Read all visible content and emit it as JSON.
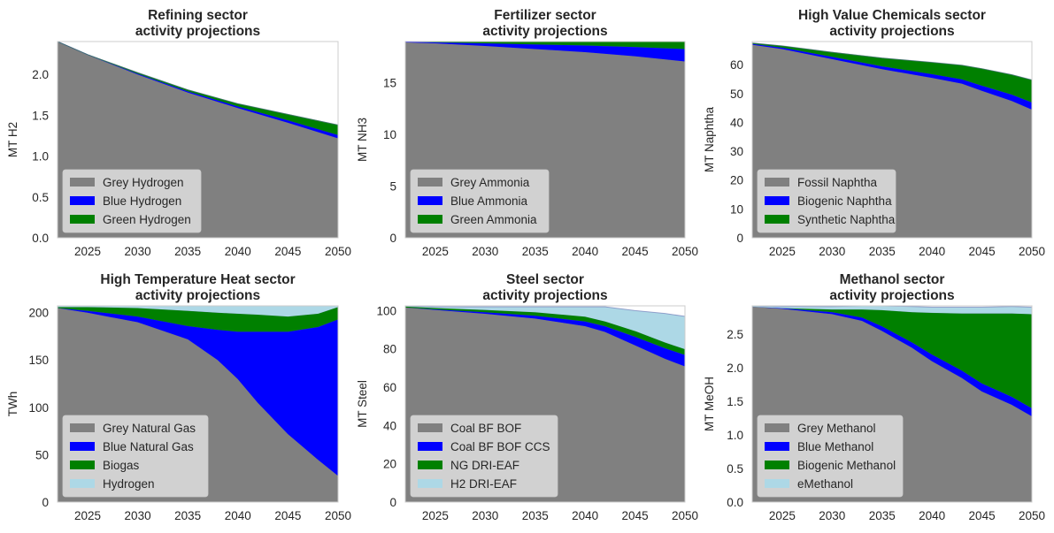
{
  "colors": {
    "grey": "#808080",
    "blue": "#0000ff",
    "green": "#008000",
    "lightblue": "#add8e6",
    "plot_bg": "#ffffff",
    "frame": "#cccccc",
    "legend_bg": "#e5e5e5"
  },
  "chart_data": [
    {
      "type": "area",
      "stacked": true,
      "title": "Refining sector\nactivity projections",
      "ylabel": "MT H2",
      "xlim": [
        2022,
        2050
      ],
      "ylim": [
        0,
        2.4
      ],
      "xticks": [
        2025,
        2030,
        2035,
        2040,
        2045,
        2050
      ],
      "yticks": [
        0.0,
        0.5,
        1.0,
        1.5,
        2.0
      ],
      "ytick_labels": [
        "0.0",
        "0.5",
        "1.0",
        "1.5",
        "2.0"
      ],
      "legend_loc": "lower-left",
      "grid": false,
      "x": [
        2022,
        2025,
        2030,
        2035,
        2040,
        2045,
        2050
      ],
      "series": [
        {
          "name": "Grey Hydrogen",
          "color": "grey",
          "values": [
            2.4,
            2.24,
            2.0,
            1.78,
            1.59,
            1.41,
            1.22
          ]
        },
        {
          "name": "Blue Hydrogen",
          "color": "blue",
          "values": [
            0.0,
            0.0,
            0.01,
            0.015,
            0.02,
            0.03,
            0.04
          ]
        },
        {
          "name": "Green Hydrogen",
          "color": "green",
          "values": [
            0.0,
            0.0,
            0.01,
            0.015,
            0.03,
            0.07,
            0.12
          ]
        }
      ]
    },
    {
      "type": "area",
      "stacked": true,
      "title": "Fertilizer sector\nactivity projections",
      "ylabel": "MT NH3",
      "xlim": [
        2022,
        2050
      ],
      "ylim": [
        0,
        19
      ],
      "xticks": [
        2025,
        2030,
        2035,
        2040,
        2045,
        2050
      ],
      "yticks": [
        0,
        5,
        10,
        15
      ],
      "ytick_labels": [
        "0",
        "5",
        "10",
        "15"
      ],
      "legend_loc": "lower-left",
      "grid": false,
      "x": [
        2022,
        2025,
        2030,
        2035,
        2040,
        2045,
        2050
      ],
      "series": [
        {
          "name": "Grey Ammonia",
          "color": "grey",
          "values": [
            18.95,
            18.85,
            18.6,
            18.3,
            18.0,
            17.6,
            17.1
          ]
        },
        {
          "name": "Blue Ammonia",
          "color": "blue",
          "values": [
            0.05,
            0.1,
            0.25,
            0.45,
            0.65,
            0.9,
            1.2
          ]
        },
        {
          "name": "Green Ammonia",
          "color": "green",
          "values": [
            0.0,
            0.05,
            0.15,
            0.25,
            0.35,
            0.5,
            0.7
          ]
        }
      ]
    },
    {
      "type": "area",
      "stacked": true,
      "title": "High Value Chemicals sector\nactivity projections",
      "ylabel": "MT Naphtha",
      "xlim": [
        2022,
        2050
      ],
      "ylim": [
        0,
        68
      ],
      "xticks": [
        2025,
        2030,
        2035,
        2040,
        2045,
        2050
      ],
      "yticks": [
        0,
        10,
        20,
        30,
        40,
        50,
        60
      ],
      "ytick_labels": [
        "0",
        "10",
        "20",
        "30",
        "40",
        "50",
        "60"
      ],
      "legend_loc": "lower-left",
      "grid": false,
      "x": [
        2022,
        2025,
        2030,
        2035,
        2040,
        2043,
        2045,
        2048,
        2050
      ],
      "series": [
        {
          "name": "Fossil Naphtha",
          "color": "grey",
          "values": [
            67.0,
            65.5,
            62.0,
            58.5,
            55.5,
            53.5,
            51.0,
            47.5,
            44.5
          ]
        },
        {
          "name": "Biogenic Naphtha",
          "color": "blue",
          "values": [
            0.3,
            0.5,
            0.8,
            1.0,
            1.3,
            1.5,
            1.8,
            2.2,
            2.5
          ]
        },
        {
          "name": "Synthetic Naphtha",
          "color": "green",
          "values": [
            0.2,
            0.5,
            1.5,
            2.8,
            4.0,
            4.8,
            5.8,
            6.8,
            7.7
          ]
        }
      ]
    },
    {
      "type": "area",
      "stacked": true,
      "title": "High Temperature Heat sector\nactivity projections",
      "ylabel": "TWh",
      "xlim": [
        2022,
        2050
      ],
      "ylim": [
        0,
        207
      ],
      "xticks": [
        2025,
        2030,
        2035,
        2040,
        2045,
        2050
      ],
      "yticks": [
        0,
        50,
        100,
        150,
        200
      ],
      "ytick_labels": [
        "0",
        "50",
        "100",
        "150",
        "200"
      ],
      "legend_loc": "lower-left",
      "grid": false,
      "x": [
        2022,
        2025,
        2030,
        2035,
        2038,
        2040,
        2042,
        2045,
        2048,
        2050
      ],
      "series": [
        {
          "name": "Grey Natural Gas",
          "color": "grey",
          "values": [
            205,
            200,
            190,
            172,
            150,
            130,
            105,
            72,
            45,
            28
          ]
        },
        {
          "name": "Blue Natural Gas",
          "color": "blue",
          "values": [
            0,
            2,
            6,
            14,
            32,
            50,
            75,
            108,
            140,
            165
          ]
        },
        {
          "name": "Biogas",
          "color": "green",
          "values": [
            1,
            4,
            9,
            16,
            18,
            19,
            18,
            16,
            14,
            13
          ]
        },
        {
          "name": "Hydrogen",
          "color": "lightblue",
          "values": [
            1,
            2,
            2,
            5,
            7,
            8,
            9,
            11,
            11,
            13
          ]
        }
      ]
    },
    {
      "type": "area",
      "stacked": true,
      "title": "Steel sector\nactivity projections",
      "ylabel": "MT Steel",
      "xlim": [
        2022,
        2050
      ],
      "ylim": [
        0,
        102.5
      ],
      "xticks": [
        2025,
        2030,
        2035,
        2040,
        2045,
        2050
      ],
      "yticks": [
        0,
        20,
        40,
        60,
        80,
        100
      ],
      "ytick_labels": [
        "0",
        "20",
        "40",
        "60",
        "80",
        "100"
      ],
      "legend_loc": "lower-left",
      "grid": false,
      "x": [
        2022,
        2025,
        2030,
        2035,
        2040,
        2042,
        2045,
        2048,
        2050
      ],
      "series": [
        {
          "name": "Coal BF BOF",
          "color": "grey",
          "values": [
            101.8,
            100.5,
            98.5,
            96.0,
            92.0,
            89.0,
            82.0,
            75.0,
            71.0
          ]
        },
        {
          "name": "Coal BF BOF CCS",
          "color": "blue",
          "values": [
            0.0,
            0.3,
            0.8,
            1.5,
            2.5,
            3.0,
            4.5,
            5.5,
            6.0
          ]
        },
        {
          "name": "NG DRI-EAF",
          "color": "green",
          "values": [
            0.5,
            0.7,
            1.2,
            1.8,
            2.5,
            2.5,
            3.0,
            3.0,
            3.0
          ]
        },
        {
          "name": "H2 DRI-EAF",
          "color": "lightblue",
          "values": [
            0.2,
            0.5,
            1.5,
            2.7,
            5.0,
            7.5,
            10.5,
            15.0,
            17.0
          ]
        }
      ]
    },
    {
      "type": "area",
      "stacked": true,
      "title": "Methanol sector\nactivity projections",
      "ylabel": "MT MeOH",
      "xlim": [
        2022,
        2050
      ],
      "ylim": [
        0,
        2.92
      ],
      "xticks": [
        2025,
        2030,
        2035,
        2040,
        2045,
        2050
      ],
      "yticks": [
        0.0,
        0.5,
        1.0,
        1.5,
        2.0,
        2.5
      ],
      "ytick_labels": [
        "0.0",
        "0.5",
        "1.0",
        "1.5",
        "2.0",
        "2.5"
      ],
      "legend_loc": "lower-left",
      "grid": false,
      "x": [
        2022,
        2025,
        2030,
        2033,
        2035,
        2038,
        2040,
        2043,
        2045,
        2048,
        2050
      ],
      "series": [
        {
          "name": "Grey Methanol",
          "color": "grey",
          "values": [
            2.91,
            2.88,
            2.8,
            2.7,
            2.55,
            2.3,
            2.1,
            1.85,
            1.65,
            1.45,
            1.28
          ]
        },
        {
          "name": "Blue Methanol",
          "color": "blue",
          "values": [
            0.0,
            0.01,
            0.03,
            0.05,
            0.07,
            0.08,
            0.1,
            0.11,
            0.12,
            0.12,
            0.12
          ]
        },
        {
          "name": "Biogenic Methanol",
          "color": "green",
          "values": [
            0.0,
            0.0,
            0.04,
            0.12,
            0.24,
            0.45,
            0.62,
            0.85,
            1.04,
            1.24,
            1.4
          ]
        },
        {
          "name": "eMethanol",
          "color": "lightblue",
          "values": [
            0.01,
            0.02,
            0.04,
            0.05,
            0.06,
            0.08,
            0.08,
            0.09,
            0.09,
            0.1,
            0.1
          ]
        }
      ]
    }
  ]
}
